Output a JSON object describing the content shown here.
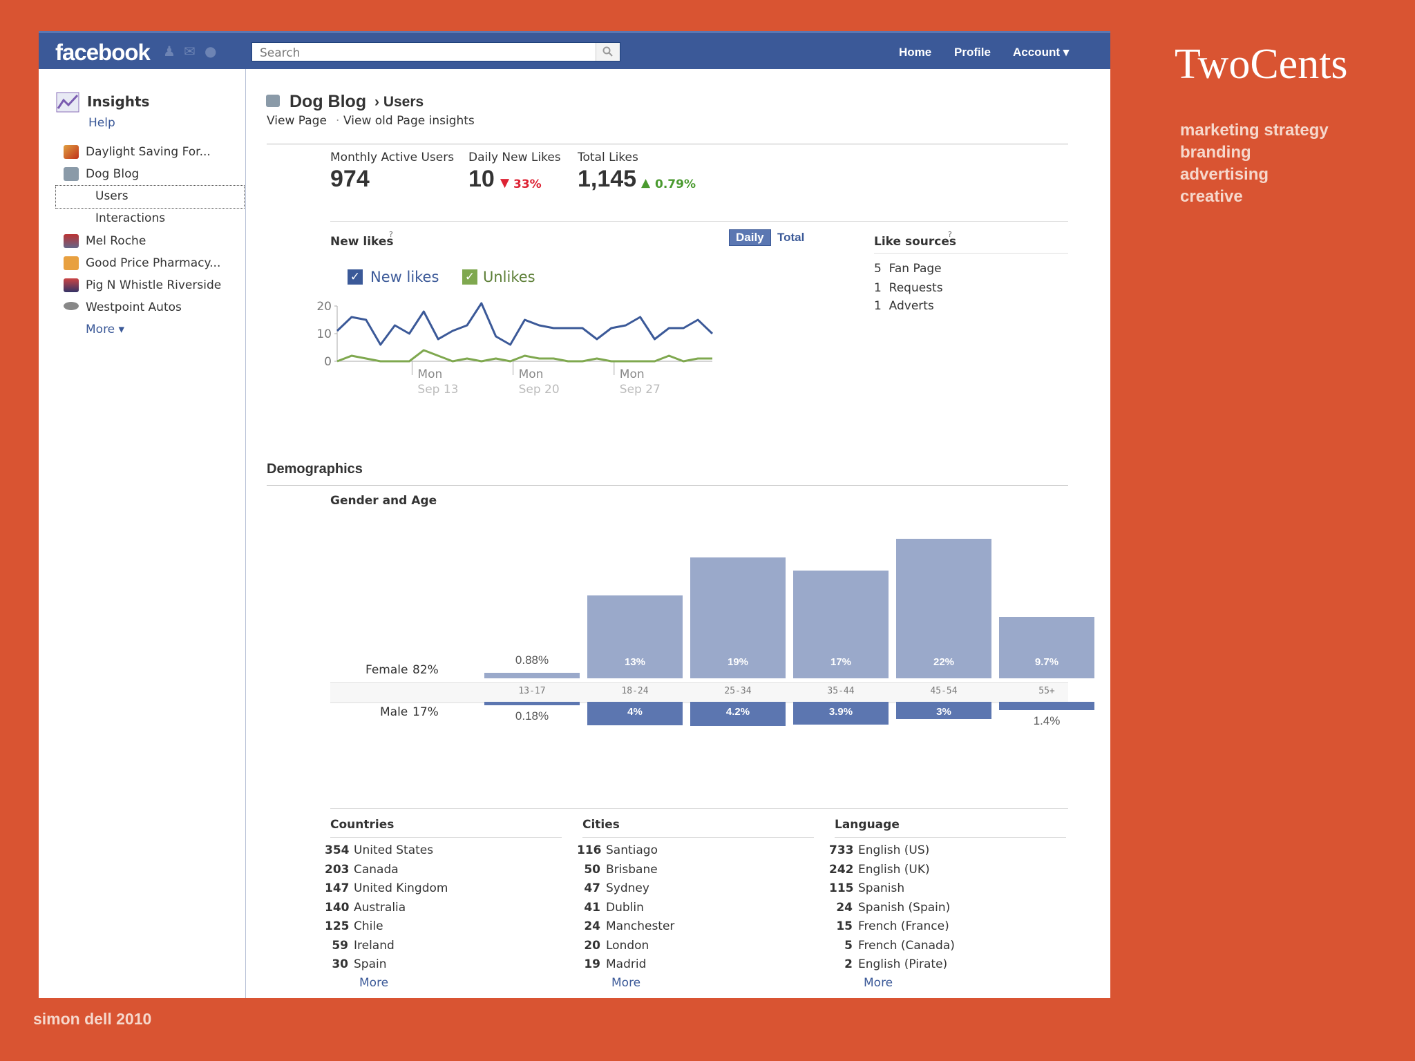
{
  "topbar": {
    "logo": "facebook",
    "search_placeholder": "Search",
    "nav": {
      "home": "Home",
      "profile": "Profile",
      "account": "Account ▾"
    }
  },
  "sidebar": {
    "title": "Insights",
    "help": "Help",
    "items": [
      "Daylight Saving For...",
      "Dog Blog",
      "Users",
      "Interactions",
      "Mel Roche",
      "Good Price Pharmacy...",
      "Pig N Whistle Riverside",
      "Westpoint Autos"
    ],
    "more": "More ▾"
  },
  "page": {
    "title": "Dog Blog",
    "crumb": "› Users",
    "view_page": "View Page",
    "sep": "·",
    "view_old": "View old Page insights"
  },
  "stats": {
    "mau_label": "Monthly Active Users",
    "mau_value": "974",
    "dnl_label": "Daily New Likes",
    "dnl_value": "10",
    "dnl_change": "33%",
    "tl_label": "Total Likes",
    "tl_value": "1,145",
    "tl_change": "0.79%"
  },
  "new_likes": {
    "title": "New likes",
    "help": "?",
    "daily": "Daily",
    "total": "Total",
    "legend_new": "New likes",
    "legend_unlikes": "Unlikes",
    "colors": {
      "new": "#3B5998",
      "unlikes": "#7fa84f"
    }
  },
  "like_sources": {
    "title": "Like sources",
    "help": "?",
    "items": [
      {
        "count": "5",
        "name": "Fan Page"
      },
      {
        "count": "1",
        "name": "Requests"
      },
      {
        "count": "1",
        "name": "Adverts"
      }
    ]
  },
  "demographics": {
    "title": "Demographics",
    "gender_age": "Gender and Age",
    "female_label": "Female",
    "female_pct": "82%",
    "male_label": "Male",
    "male_pct": "17%"
  },
  "chart_data": [
    {
      "type": "line",
      "title": "New likes",
      "x_ticks": [
        "Mon",
        "Sep 13",
        "Mon",
        "Sep 20",
        "Mon",
        "Sep 27"
      ],
      "ylim": [
        0,
        20
      ],
      "y_ticks": [
        "20",
        "10",
        "0"
      ],
      "series": [
        {
          "name": "New likes",
          "values": [
            11,
            16,
            15,
            6,
            13,
            10,
            18,
            8,
            11,
            13,
            21,
            9,
            6,
            15,
            13,
            12,
            12,
            12,
            8,
            12,
            13,
            16,
            8,
            12,
            12,
            15,
            10
          ]
        },
        {
          "name": "Unlikes",
          "values": [
            0,
            2,
            1,
            0,
            0,
            0,
            4,
            2,
            0,
            1,
            0,
            1,
            0,
            2,
            1,
            1,
            0,
            0,
            1,
            0,
            0,
            0,
            0,
            2,
            0,
            1,
            1
          ]
        }
      ]
    },
    {
      "type": "bar",
      "title": "Gender and Age",
      "categories": [
        "13-17",
        "18-24",
        "25-34",
        "35-44",
        "45-54",
        "55+"
      ],
      "series": [
        {
          "name": "Female",
          "values": [
            0.88,
            13,
            19,
            17,
            22,
            9.7
          ],
          "labels": [
            "0.88%",
            "13%",
            "19%",
            "17%",
            "22%",
            "9.7%"
          ]
        },
        {
          "name": "Male",
          "values": [
            0.18,
            4,
            4.2,
            3.9,
            3,
            1.4
          ],
          "labels": [
            "0.18%",
            "4%",
            "4.2%",
            "3.9%",
            "3%",
            "1.4%"
          ]
        }
      ]
    }
  ],
  "countries": {
    "title": "Countries",
    "rows": [
      [
        "354",
        "United States"
      ],
      [
        "203",
        "Canada"
      ],
      [
        "147",
        "United Kingdom"
      ],
      [
        "140",
        "Australia"
      ],
      [
        "125",
        "Chile"
      ],
      [
        "59",
        "Ireland"
      ],
      [
        "30",
        "Spain"
      ]
    ],
    "more": "More"
  },
  "cities": {
    "title": "Cities",
    "rows": [
      [
        "116",
        "Santiago"
      ],
      [
        "50",
        "Brisbane"
      ],
      [
        "47",
        "Sydney"
      ],
      [
        "41",
        "Dublin"
      ],
      [
        "24",
        "Manchester"
      ],
      [
        "20",
        "London"
      ],
      [
        "19",
        "Madrid"
      ]
    ],
    "more": "More"
  },
  "languages": {
    "title": "Language",
    "rows": [
      [
        "733",
        "English (US)"
      ],
      [
        "242",
        "English (UK)"
      ],
      [
        "115",
        "Spanish"
      ],
      [
        "24",
        "Spanish (Spain)"
      ],
      [
        "15",
        "French (France)"
      ],
      [
        "5",
        "French (Canada)"
      ],
      [
        "2",
        "English (Pirate)"
      ]
    ],
    "more": "More"
  },
  "brand": {
    "name": "TwoCents",
    "tags": [
      "marketing strategy",
      "branding",
      "advertising",
      "creative"
    ],
    "credit": "simon dell 2010"
  }
}
